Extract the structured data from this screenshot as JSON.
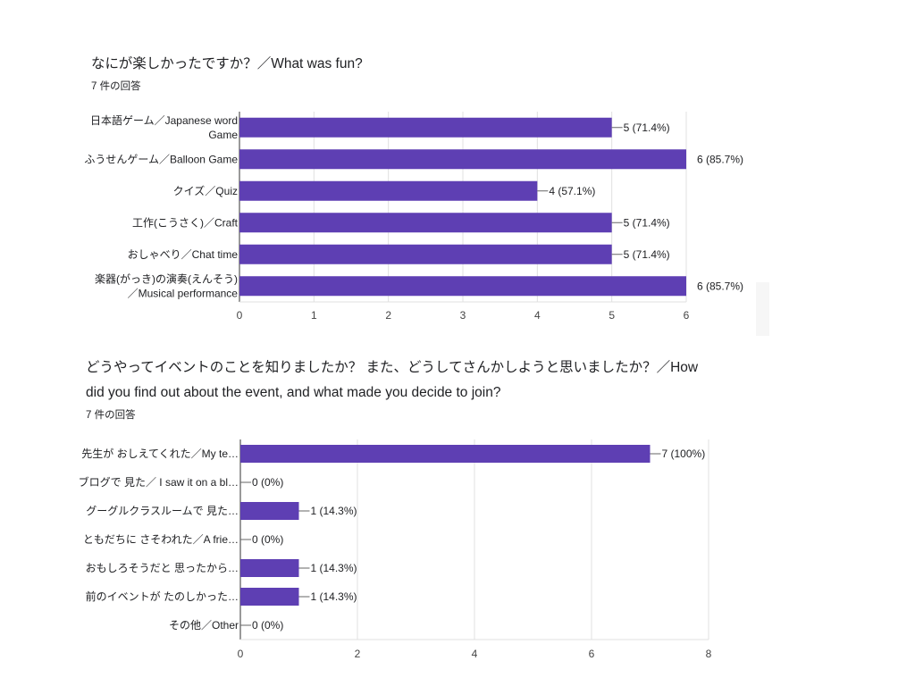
{
  "surveys": [
    {
      "question": "なにが楽しかったですか？／What was fun?",
      "question_line2": "",
      "response_count": "7 件の回答",
      "bar_color": "#5e3fb3",
      "chart_data": {
        "type": "bar",
        "orientation": "horizontal",
        "categories": [
          [
            "日本語ゲーム／Japanese word",
            "Game"
          ],
          [
            "ふうせんゲーム／Balloon Game"
          ],
          [
            "クイズ／Quiz"
          ],
          [
            "工作(こうさく)／Craft"
          ],
          [
            "おしゃべり／Chat time"
          ],
          [
            "楽器(がっき)の演奏(えんそう)",
            "／Musical performance"
          ]
        ],
        "values": [
          5,
          6,
          4,
          5,
          5,
          6
        ],
        "data_labels": [
          "5 (71.4%)",
          "6 (85.7%)",
          "4 (57.1%)",
          "5 (71.4%)",
          "5 (71.4%)",
          "6 (85.7%)"
        ],
        "xlim": [
          0,
          6
        ],
        "xticks": [
          0,
          1,
          2,
          3,
          4,
          5,
          6
        ],
        "grid": true
      }
    },
    {
      "question": "どうやってイベントのことを知りましたか？ また、どうしてさんかしようと思いましたか？／How",
      "question_line2": "did you find out about the event, and what made you decide to join?",
      "response_count": "7 件の回答",
      "bar_color": "#5e3fb3",
      "chart_data": {
        "type": "bar",
        "orientation": "horizontal",
        "categories": [
          [
            "先生が おしえてくれた／My te…"
          ],
          [
            "ブログで 見た／ I saw it on a bl…"
          ],
          [
            "グーグルクラスルームで 見た…"
          ],
          [
            "ともだちに さそわれた／A frie…"
          ],
          [
            "おもしろそうだと 思ったから…"
          ],
          [
            "前のイベントが たのしかった…"
          ],
          [
            "その他／Other"
          ]
        ],
        "values": [
          7,
          0,
          1,
          0,
          1,
          1,
          0
        ],
        "data_labels": [
          "7 (100%)",
          "0 (0%)",
          "1 (14.3%)",
          "0 (0%)",
          "1 (14.3%)",
          "1 (14.3%)",
          "0 (0%)"
        ],
        "xlim": [
          0,
          8
        ],
        "xticks": [
          0,
          2,
          4,
          6,
          8
        ],
        "grid": true
      }
    }
  ]
}
